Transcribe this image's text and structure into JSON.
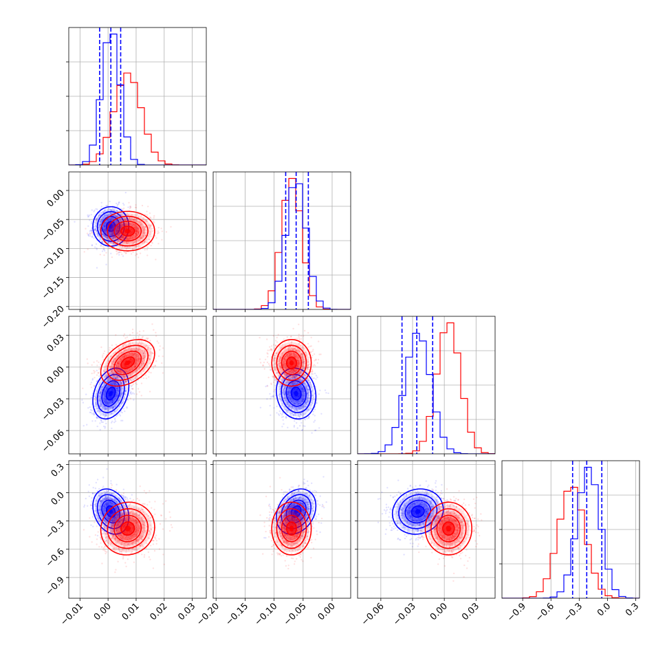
{
  "chart_data": {
    "type": "corner",
    "grid": true,
    "legend": "none",
    "colors": {
      "blue": "#0000ff",
      "red": "#ff0000"
    },
    "parameters": [
      {
        "range": [
          -0.014,
          0.035
        ],
        "ticks": [
          -0.01,
          0.0,
          0.01,
          0.02,
          0.03
        ],
        "tick_labels": [
          "−0.01",
          "0.00",
          "0.01",
          "0.02",
          "0.03"
        ]
      },
      {
        "range": [
          -0.205,
          0.032
        ],
        "ticks": [
          -0.2,
          -0.15,
          -0.1,
          -0.05,
          0.0
        ],
        "tick_labels": [
          "−0.20",
          "−0.15",
          "−0.10",
          "−0.05",
          "0.00"
        ]
      },
      {
        "range": [
          -0.082,
          0.048
        ],
        "ticks": [
          -0.06,
          -0.03,
          0.0,
          0.03
        ],
        "tick_labels": [
          "−0.06",
          "−0.03",
          "0.00",
          "0.03"
        ]
      },
      {
        "range": [
          -1.12,
          0.34
        ],
        "ticks": [
          -0.9,
          -0.6,
          -0.3,
          0.0,
          0.3
        ],
        "tick_labels": [
          "−0.9",
          "−0.6",
          "−0.3",
          "0.0",
          "0.3"
        ]
      }
    ],
    "series": [
      {
        "color": "#0000ff",
        "mean": [
          0.001,
          -0.062,
          -0.025,
          -0.2
        ],
        "std": [
          0.0032,
          0.017,
          0.012,
          0.12
        ],
        "corr": [
          [
            1,
            0,
            0.3,
            -0.25
          ],
          [
            0,
            1,
            -0.1,
            0.25
          ],
          [
            0.3,
            -0.1,
            1,
            0.1
          ],
          [
            -0.25,
            0.25,
            0.1,
            1
          ]
        ],
        "quantiles": [
          [
            -0.003,
            0.001,
            0.0045
          ],
          [
            -0.08,
            -0.062,
            -0.041
          ],
          [
            -0.04,
            -0.026,
            -0.011
          ],
          [
            -0.37,
            -0.22,
            -0.06
          ]
        ]
      },
      {
        "color": "#ff0000",
        "mean": [
          0.007,
          -0.07,
          0.004,
          -0.38
        ],
        "std": [
          0.0048,
          0.017,
          0.011,
          0.14
        ],
        "corr": [
          [
            1,
            0,
            0.4,
            0.05
          ],
          [
            0,
            1,
            0,
            0
          ],
          [
            0.4,
            0,
            1,
            0
          ],
          [
            0.05,
            0,
            0,
            1
          ]
        ]
      }
    ]
  }
}
